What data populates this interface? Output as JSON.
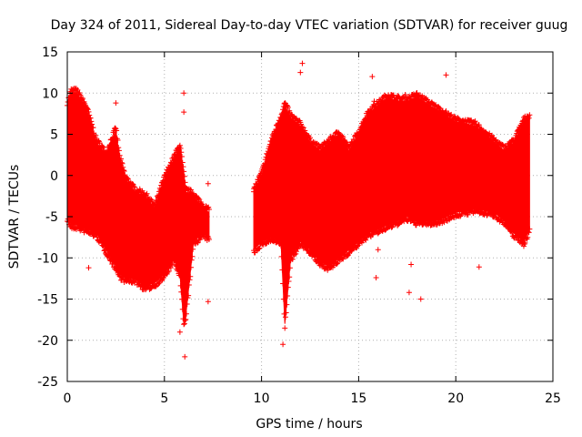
{
  "chart_data": {
    "type": "scatter",
    "title": "Day 324 of 2011, Sidereal Day-to-day VTEC variation (SDTVAR) for receiver guug",
    "xlabel": "GPS time / hours",
    "ylabel": "SDTVAR / TECUs",
    "xlim": [
      0,
      25
    ],
    "ylim": [
      -25,
      15
    ],
    "xticks": [
      "0",
      "5",
      "10",
      "15",
      "20",
      "25"
    ],
    "yticks": [
      "15",
      "10",
      "5",
      "0",
      "-5",
      "-10",
      "-15",
      "-20",
      "-25"
    ],
    "grid": true,
    "marker": "+",
    "series_color": "#ff0000",
    "envelope_segments": [
      {
        "name": "segment-1",
        "x": [
          0.0,
          0.2,
          0.5,
          1.0,
          1.5,
          2.0,
          2.5,
          2.7,
          3.0,
          3.5,
          4.0,
          4.5,
          5.0,
          5.5,
          5.8,
          6.0,
          6.1,
          6.5,
          7.0,
          7.3
        ],
        "upper": [
          8.5,
          10.0,
          10.0,
          8.0,
          4.0,
          2.5,
          5.5,
          2.0,
          -0.5,
          -2.0,
          -2.5,
          -4.0,
          -0.5,
          2.0,
          3.5,
          0.0,
          -2.0,
          -2.5,
          -4.0,
          -4.5
        ],
        "lower": [
          -5.0,
          -6.0,
          -6.0,
          -6.5,
          -7.0,
          -9.0,
          -11.0,
          -12.0,
          -12.5,
          -12.5,
          -13.5,
          -13.0,
          -12.0,
          -10.0,
          -12.0,
          -18.0,
          -17.0,
          -8.0,
          -7.0,
          -7.5
        ]
      },
      {
        "name": "segment-2",
        "x": [
          9.6,
          10.0,
          10.5,
          11.0,
          11.2,
          11.5,
          12.0,
          12.5,
          13.0,
          13.5,
          14.0,
          14.5,
          15.0,
          15.5,
          16.0,
          16.5,
          17.0,
          17.5,
          18.0,
          19.0,
          20.0,
          21.0,
          22.0,
          22.5,
          23.0,
          23.5,
          23.8
        ],
        "upper": [
          -2.0,
          0.0,
          4.0,
          7.0,
          8.5,
          7.0,
          6.0,
          4.0,
          3.0,
          4.0,
          5.0,
          3.0,
          5.0,
          7.5,
          8.5,
          9.5,
          9.0,
          9.0,
          9.5,
          8.0,
          6.5,
          6.0,
          4.0,
          3.0,
          4.0,
          6.5,
          7.0
        ],
        "lower": [
          -9.0,
          -8.0,
          -7.5,
          -8.0,
          -18.0,
          -10.0,
          -8.0,
          -9.0,
          -10.5,
          -11.0,
          -10.0,
          -9.0,
          -8.0,
          -7.0,
          -6.5,
          -6.0,
          -5.5,
          -5.0,
          -5.5,
          -5.5,
          -4.5,
          -4.0,
          -4.5,
          -5.5,
          -7.0,
          -8.0,
          -6.5
        ]
      }
    ],
    "outlier_points": [
      {
        "x": 1.1,
        "y": -11.2
      },
      {
        "x": 2.5,
        "y": 8.8
      },
      {
        "x": 6.05,
        "y": -22.0
      },
      {
        "x": 7.25,
        "y": -1.0
      },
      {
        "x": 7.25,
        "y": -15.3
      },
      {
        "x": 7.1,
        "y": -4.8
      },
      {
        "x": 9.6,
        "y": -1.6
      },
      {
        "x": 15.7,
        "y": 12.0
      },
      {
        "x": 15.9,
        "y": -12.4
      },
      {
        "x": 16.0,
        "y": -9.0
      },
      {
        "x": 17.0,
        "y": 9.7
      },
      {
        "x": 17.4,
        "y": 9.8
      },
      {
        "x": 17.6,
        "y": -14.2
      },
      {
        "x": 17.7,
        "y": -10.8
      },
      {
        "x": 18.2,
        "y": -15.0
      },
      {
        "x": 19.5,
        "y": 12.2
      },
      {
        "x": 21.2,
        "y": -11.1
      },
      {
        "x": 11.1,
        "y": -20.5
      },
      {
        "x": 5.8,
        "y": -19.0
      },
      {
        "x": 6.0,
        "y": 10.0
      },
      {
        "x": 6.0,
        "y": 7.7
      },
      {
        "x": 12.1,
        "y": 13.6
      },
      {
        "x": 12.0,
        "y": 12.5
      },
      {
        "x": 15.8,
        "y": 9.0
      }
    ]
  }
}
